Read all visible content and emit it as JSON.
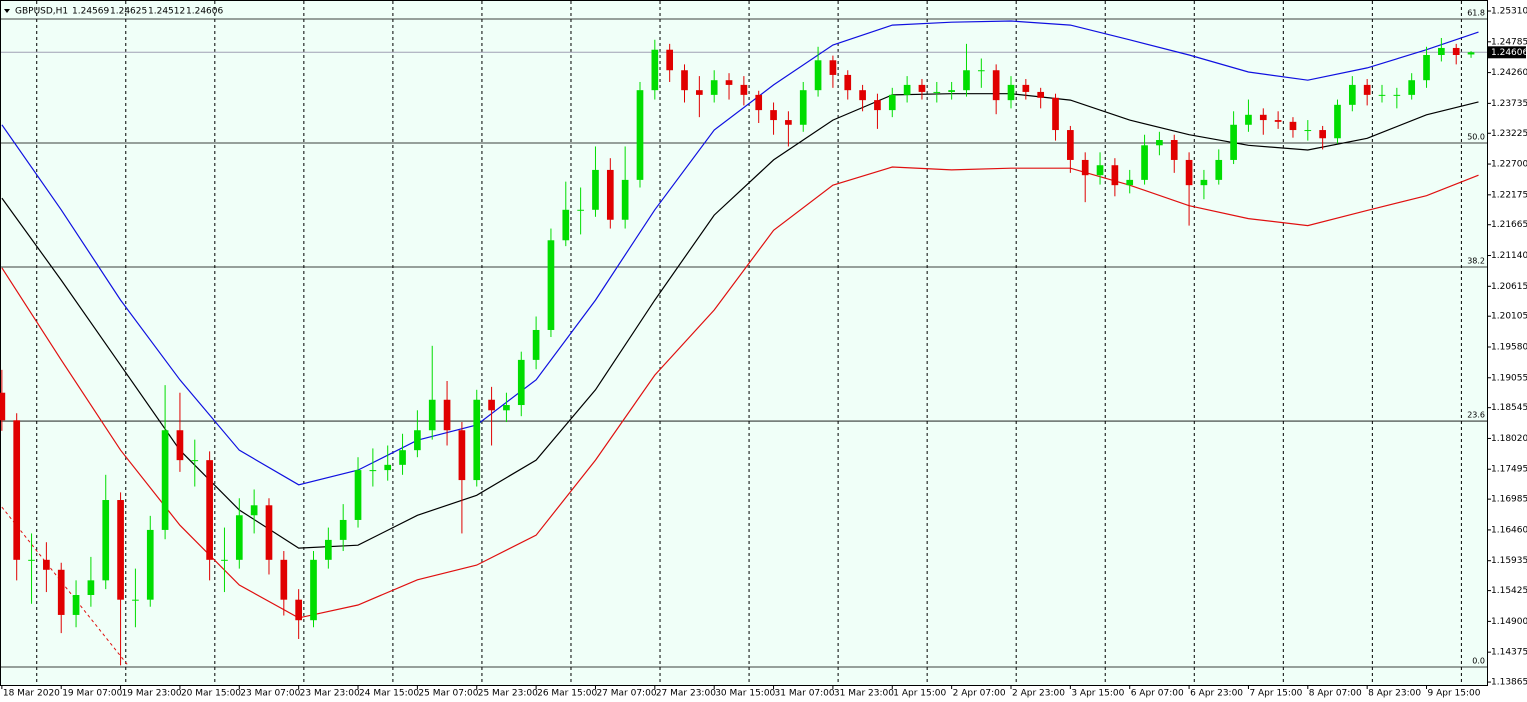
{
  "chart_data": {
    "type": "candlestick",
    "symbol": "GBPUSD,H1",
    "background": "#f0fff8",
    "up_color": "#00dd00",
    "down_color": "#e00000",
    "xlim": [
      -0.5,
      400.3
    ],
    "ylim": [
      1.13815,
      1.25498
    ],
    "xticks": [
      {
        "value": 0,
        "label": "18 Mar 2020"
      },
      {
        "value": 16,
        "label": "19 Mar 07:00"
      },
      {
        "value": 32,
        "label": "19 Mar 23:00"
      },
      {
        "value": 48,
        "label": "20 Mar 15:00"
      },
      {
        "value": 64,
        "label": "23 Mar 07:00"
      },
      {
        "value": 80,
        "label": "23 Mar 23:00"
      },
      {
        "value": 96,
        "label": "24 Mar 15:00"
      },
      {
        "value": 112,
        "label": "25 Mar 07:00"
      },
      {
        "value": 128,
        "label": "25 Mar 23:00"
      },
      {
        "value": 144,
        "label": "26 Mar 15:00"
      },
      {
        "value": 160,
        "label": "27 Mar 07:00"
      },
      {
        "value": 176,
        "label": "27 Mar 23:00"
      },
      {
        "value": 192,
        "label": "30 Mar 15:00"
      },
      {
        "value": 208,
        "label": "31 Mar 07:00"
      },
      {
        "value": 224,
        "label": "31 Mar 23:00"
      },
      {
        "value": 240,
        "label": "1 Apr 15:00"
      },
      {
        "value": 256,
        "label": "2 Apr 07:00"
      },
      {
        "value": 272,
        "label": "2 Apr 23:00"
      },
      {
        "value": 288,
        "label": "3 Apr 15:00"
      },
      {
        "value": 304,
        "label": "6 Apr 07:00"
      },
      {
        "value": 320,
        "label": "6 Apr 23:00"
      },
      {
        "value": 336,
        "label": "7 Apr 15:00"
      },
      {
        "value": 352,
        "label": "8 Apr 07:00"
      },
      {
        "value": 368,
        "label": "8 Apr 23:00"
      },
      {
        "value": 384,
        "label": "9 Apr 15:00"
      }
    ],
    "yticks": [
      {
        "value": 1.2531,
        "label": "1.25310"
      },
      {
        "value": 1.24785,
        "label": "1.24785"
      },
      {
        "value": 1.2426,
        "label": "1.24260"
      },
      {
        "value": 1.23735,
        "label": "1.23735"
      },
      {
        "value": 1.23225,
        "label": "1.23225"
      },
      {
        "value": 1.227,
        "label": "1.22700"
      },
      {
        "value": 1.22175,
        "label": "1.22175"
      },
      {
        "value": 1.21665,
        "label": "1.21665"
      },
      {
        "value": 1.2114,
        "label": "1.21140"
      },
      {
        "value": 1.20615,
        "label": "1.20615"
      },
      {
        "value": 1.20105,
        "label": "1.20105"
      },
      {
        "value": 1.1958,
        "label": "1.19580"
      },
      {
        "value": 1.19055,
        "label": "1.19055"
      },
      {
        "value": 1.18545,
        "label": "1.18545"
      },
      {
        "value": 1.1802,
        "label": "1.18020"
      },
      {
        "value": 1.17495,
        "label": "1.17495"
      },
      {
        "value": 1.16985,
        "label": "1.16985"
      },
      {
        "value": 1.1646,
        "label": "1.16460"
      },
      {
        "value": 1.15935,
        "label": "1.15935"
      },
      {
        "value": 1.15425,
        "label": "1.15425"
      },
      {
        "value": 1.149,
        "label": "1.14900"
      },
      {
        "value": 1.14375,
        "label": "1.14375"
      },
      {
        "value": 1.13865,
        "label": "1.13865"
      }
    ],
    "x": [
      0,
      4,
      8,
      12,
      16,
      20,
      24,
      28,
      32,
      36,
      40,
      44,
      48,
      52,
      56,
      60,
      64,
      68,
      72,
      76,
      80,
      84,
      88,
      92,
      96,
      100,
      104,
      108,
      112,
      116,
      120,
      124,
      128,
      132,
      136,
      140,
      144,
      148,
      152,
      156,
      160,
      164,
      168,
      172,
      176,
      180,
      184,
      188,
      192,
      196,
      200,
      204,
      208,
      212,
      216,
      220,
      224,
      228,
      232,
      236,
      240,
      244,
      248,
      252,
      256,
      260,
      264,
      268,
      272,
      276,
      280,
      284,
      288,
      292,
      296,
      300,
      304,
      308,
      312,
      316,
      320,
      324,
      328,
      332,
      336,
      340,
      344,
      348,
      352,
      356,
      360,
      364,
      368,
      372,
      376,
      380,
      384,
      388,
      392,
      396
    ],
    "open": [
      1.188,
      1.1833,
      1.1595,
      1.1595,
      1.1578,
      1.1501,
      1.1535,
      1.156,
      1.1697,
      1.1527,
      1.1527,
      1.1646,
      1.1816,
      1.1765,
      1.1765,
      1.1595,
      1.1595,
      1.1671,
      1.1688,
      1.1595,
      1.1527,
      1.1492,
      1.1595,
      1.1629,
      1.1663,
      1.1748,
      1.1748,
      1.1757,
      1.1782,
      1.1816,
      1.1868,
      1.1816,
      1.1731,
      1.1868,
      1.185,
      1.1859,
      1.1936,
      1.1987,
      1.214,
      1.2192,
      1.2192,
      1.226,
      1.2175,
      1.2243,
      1.2396,
      1.2465,
      1.243,
      1.2396,
      1.2388,
      1.2413,
      1.2405,
      1.2388,
      1.2362,
      1.2345,
      1.2337,
      1.2396,
      1.2447,
      1.2422,
      1.2396,
      1.2379,
      1.2362,
      1.2388,
      1.2405,
      1.2393,
      1.2393,
      1.2396,
      1.243,
      1.243,
      1.2379,
      1.2405,
      1.2393,
      1.2383,
      1.2328,
      1.2277,
      1.2251,
      1.2268,
      1.2234,
      1.2243,
      1.2302,
      1.2311,
      1.2277,
      1.2234,
      1.2243,
      1.2277,
      1.2337,
      1.2354,
      1.2345,
      1.2342,
      1.2328,
      1.2328,
      1.2314,
      1.2371,
      1.2405,
      1.2388,
      1.2388,
      1.2388,
      1.2413,
      1.2456,
      1.2468,
      1.24569
    ],
    "high": [
      1.1919,
      1.1845,
      1.164,
      1.1625,
      1.159,
      1.156,
      1.16,
      1.174,
      1.171,
      1.158,
      1.167,
      1.1893,
      1.188,
      1.18,
      1.178,
      1.165,
      1.17,
      1.1715,
      1.17,
      1.161,
      1.1545,
      1.161,
      1.165,
      1.169,
      1.177,
      1.1785,
      1.179,
      1.181,
      1.185,
      1.196,
      1.19,
      1.183,
      1.1885,
      1.189,
      1.188,
      1.195,
      1.201,
      1.216,
      1.224,
      1.223,
      1.23,
      1.228,
      1.23,
      1.241,
      1.2482,
      1.2475,
      1.244,
      1.242,
      1.243,
      1.2425,
      1.242,
      1.2395,
      1.2375,
      1.236,
      1.241,
      1.247,
      1.2455,
      1.243,
      1.2405,
      1.239,
      1.24,
      1.242,
      1.2415,
      1.241,
      1.241,
      1.2475,
      1.245,
      1.244,
      1.242,
      1.2415,
      1.24,
      1.239,
      1.2335,
      1.229,
      1.229,
      1.228,
      1.226,
      1.232,
      1.2325,
      1.232,
      1.229,
      1.226,
      1.2295,
      1.236,
      1.238,
      1.2365,
      1.236,
      1.235,
      1.2345,
      1.2335,
      1.238,
      1.242,
      1.2415,
      1.2405,
      1.24,
      1.2425,
      1.247,
      1.2485,
      1.2475,
      1.24625
    ],
    "low": [
      1.1815,
      1.156,
      1.152,
      1.154,
      1.147,
      1.148,
      1.1515,
      1.1545,
      1.1415,
      1.148,
      1.1515,
      1.163,
      1.1745,
      1.172,
      1.156,
      1.154,
      1.158,
      1.164,
      1.157,
      1.15,
      1.146,
      1.148,
      1.158,
      1.161,
      1.165,
      1.172,
      1.173,
      1.174,
      1.177,
      1.18,
      1.179,
      1.164,
      1.172,
      1.179,
      1.183,
      1.184,
      1.192,
      1.1975,
      1.213,
      1.215,
      1.218,
      1.216,
      1.216,
      1.223,
      1.238,
      1.241,
      1.2375,
      1.235,
      1.2375,
      1.238,
      1.237,
      1.234,
      1.232,
      1.23,
      1.2325,
      1.2385,
      1.24,
      1.238,
      1.236,
      1.233,
      1.235,
      1.2375,
      1.238,
      1.2375,
      1.238,
      1.2385,
      1.24,
      1.2355,
      1.2365,
      1.238,
      1.2365,
      1.231,
      1.2255,
      1.2205,
      1.2235,
      1.2215,
      1.222,
      1.2235,
      1.2285,
      1.2255,
      1.2165,
      1.221,
      1.2235,
      1.227,
      1.2325,
      1.232,
      1.233,
      1.2315,
      1.231,
      1.2295,
      1.2305,
      1.236,
      1.237,
      1.2375,
      1.2365,
      1.238,
      1.24,
      1.2445,
      1.244,
      1.24512
    ],
    "close": [
      1.1833,
      1.1595,
      1.1595,
      1.1578,
      1.1501,
      1.1535,
      1.156,
      1.1697,
      1.1527,
      1.1527,
      1.1646,
      1.1816,
      1.1765,
      1.1765,
      1.1595,
      1.1595,
      1.1671,
      1.1688,
      1.1595,
      1.1527,
      1.1492,
      1.1595,
      1.1629,
      1.1663,
      1.1748,
      1.1748,
      1.1757,
      1.1782,
      1.1816,
      1.1868,
      1.1816,
      1.1731,
      1.1868,
      1.185,
      1.1859,
      1.1936,
      1.1987,
      1.214,
      1.2192,
      1.2192,
      1.226,
      1.2175,
      1.2243,
      1.2396,
      1.2465,
      1.243,
      1.2396,
      1.2388,
      1.2413,
      1.2405,
      1.2388,
      1.2362,
      1.2345,
      1.2337,
      1.2396,
      1.2447,
      1.2422,
      1.2396,
      1.2379,
      1.2362,
      1.2388,
      1.2405,
      1.2393,
      1.2393,
      1.2396,
      1.243,
      1.243,
      1.2379,
      1.2405,
      1.2393,
      1.2383,
      1.2328,
      1.2277,
      1.2251,
      1.2268,
      1.2234,
      1.2243,
      1.2302,
      1.2311,
      1.2277,
      1.2234,
      1.2243,
      1.2277,
      1.2337,
      1.2354,
      1.2345,
      1.2342,
      1.2328,
      1.2328,
      1.2314,
      1.2371,
      1.2405,
      1.2388,
      1.2388,
      1.2388,
      1.2413,
      1.2456,
      1.2468,
      1.2456,
      1.24606
    ],
    "price_line_color": "#a0a0b4",
    "ma_x": [
      0,
      16,
      32,
      48,
      64,
      80,
      96,
      112,
      128,
      144,
      160,
      176,
      192,
      208,
      224,
      240,
      256,
      272,
      288,
      304,
      320,
      336,
      352,
      368,
      384,
      398
    ],
    "ma": [
      {
        "color": "#1010e0",
        "values": [
          1.2337,
          1.2192,
          1.2038,
          1.1902,
          1.1782,
          1.1723,
          1.1748,
          1.1799,
          1.1825,
          1.1902,
          1.2038,
          1.2192,
          1.2328,
          1.2405,
          1.2473,
          1.2507,
          1.2512,
          1.2514,
          1.2507,
          1.2482,
          1.2456,
          1.2427,
          1.2413,
          1.2434,
          1.2465,
          1.2495
        ]
      },
      {
        "color": "#000000",
        "values": [
          1.2212,
          1.2072,
          1.1927,
          1.1782,
          1.168,
          1.1615,
          1.162,
          1.1671,
          1.1705,
          1.1765,
          1.1885,
          1.2038,
          1.2183,
          1.2277,
          1.2345,
          1.2388,
          1.239,
          1.239,
          1.2379,
          1.2345,
          1.232,
          1.2302,
          1.2294,
          1.2314,
          1.2354,
          1.2376
        ]
      },
      {
        "color": "#e01010",
        "values": [
          1.2093,
          1.1936,
          1.1782,
          1.1654,
          1.1552,
          1.1496,
          1.1518,
          1.1561,
          1.1586,
          1.1637,
          1.1765,
          1.191,
          1.2021,
          1.2157,
          1.2234,
          1.2265,
          1.226,
          1.2263,
          1.2263,
          1.2234,
          1.2199,
          1.2177,
          1.2165,
          1.2191,
          1.2216,
          1.2251
        ]
      }
    ],
    "fib": {
      "labels": [
        "61.8",
        "50.0",
        "38.2",
        "23.6",
        "0.0"
      ],
      "prices": [
        1.25174,
        1.23059,
        1.20944,
        1.18317,
        1.14122
      ],
      "color": "#000000"
    },
    "fib_trend": {
      "x": [
        0,
        34
      ],
      "y": [
        1.1685,
        1.1415
      ],
      "color": "#e01010"
    }
  }
}
